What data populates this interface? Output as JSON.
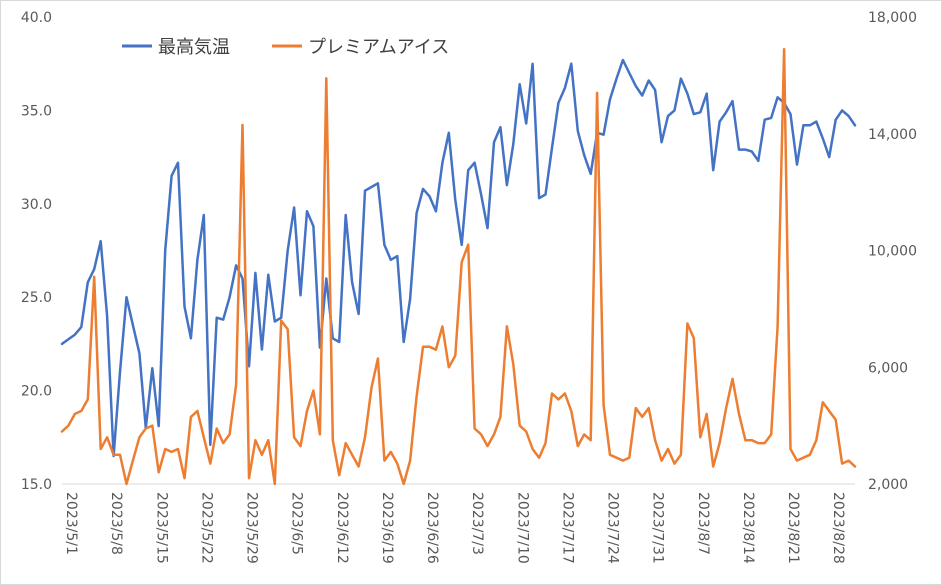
{
  "chart_data": {
    "type": "line",
    "title": "",
    "legend_position": "top-left",
    "grid": false,
    "x_tick_labels": [
      "2023/5/1",
      "2023/5/8",
      "2023/5/15",
      "2023/5/22",
      "2023/5/29",
      "2023/6/5",
      "2023/6/12",
      "2023/6/19",
      "2023/6/26",
      "2023/7/3",
      "2023/7/10",
      "2023/7/17",
      "2023/7/24",
      "2023/7/31",
      "2023/8/7",
      "2023/8/14",
      "2023/8/21",
      "2023/8/28"
    ],
    "x_day_start": 0,
    "x_day_end": 123,
    "y_left": {
      "min": 15,
      "max": 40,
      "ticks": [
        "15.0",
        "20.0",
        "25.0",
        "30.0",
        "35.0",
        "40.0"
      ]
    },
    "y_right": {
      "min": 2000,
      "max": 18000,
      "ticks": [
        "2,000",
        "6,000",
        "10,000",
        "14,000",
        "18,000"
      ]
    },
    "series": [
      {
        "name": "最高気温",
        "axis": "left",
        "color": "#4472C4",
        "points": [
          [
            0,
            22.5
          ],
          [
            2,
            23.0
          ],
          [
            3,
            23.4
          ],
          [
            4,
            25.8
          ],
          [
            5,
            26.5
          ],
          [
            6,
            28.0
          ],
          [
            7,
            24.0
          ],
          [
            8,
            16.5
          ],
          [
            9,
            21.0
          ],
          [
            10,
            25.0
          ],
          [
            11,
            23.5
          ],
          [
            12,
            22.0
          ],
          [
            13,
            18.0
          ],
          [
            14,
            21.2
          ],
          [
            15,
            18.1
          ],
          [
            16,
            27.5
          ],
          [
            17,
            31.5
          ],
          [
            18,
            32.2
          ],
          [
            19,
            24.5
          ],
          [
            20,
            22.8
          ],
          [
            21,
            27.0
          ],
          [
            22,
            29.4
          ],
          [
            23,
            17.1
          ],
          [
            24,
            23.9
          ],
          [
            25,
            23.8
          ],
          [
            26,
            25.0
          ],
          [
            27,
            26.7
          ],
          [
            28,
            26.0
          ],
          [
            29,
            21.3
          ],
          [
            30,
            26.3
          ],
          [
            31,
            22.2
          ],
          [
            32,
            26.2
          ],
          [
            33,
            23.7
          ],
          [
            34,
            23.9
          ],
          [
            35,
            27.5
          ],
          [
            36,
            29.8
          ],
          [
            37,
            25.1
          ],
          [
            38,
            29.6
          ],
          [
            39,
            28.8
          ],
          [
            40,
            22.3
          ],
          [
            41,
            26.0
          ],
          [
            42,
            22.8
          ],
          [
            43,
            22.6
          ],
          [
            44,
            29.4
          ],
          [
            45,
            25.8
          ],
          [
            46,
            24.1
          ],
          [
            47,
            30.7
          ],
          [
            48,
            30.9
          ],
          [
            49,
            31.1
          ],
          [
            50,
            27.8
          ],
          [
            51,
            27.0
          ],
          [
            52,
            27.2
          ],
          [
            53,
            22.6
          ],
          [
            54,
            24.9
          ],
          [
            55,
            29.5
          ],
          [
            56,
            30.8
          ],
          [
            57,
            30.4
          ],
          [
            58,
            29.6
          ],
          [
            59,
            32.2
          ],
          [
            60,
            33.8
          ],
          [
            61,
            30.2
          ],
          [
            62,
            27.8
          ],
          [
            63,
            31.8
          ],
          [
            64,
            32.2
          ],
          [
            65,
            30.5
          ],
          [
            66,
            28.7
          ],
          [
            67,
            33.3
          ],
          [
            68,
            34.1
          ],
          [
            69,
            31.0
          ],
          [
            70,
            33.2
          ],
          [
            71,
            36.4
          ],
          [
            72,
            34.3
          ],
          [
            73,
            37.5
          ],
          [
            74,
            30.3
          ],
          [
            75,
            30.5
          ],
          [
            76,
            33.0
          ],
          [
            77,
            35.4
          ],
          [
            78,
            36.2
          ],
          [
            79,
            37.5
          ],
          [
            80,
            33.9
          ],
          [
            81,
            32.6
          ],
          [
            82,
            31.6
          ],
          [
            83,
            33.8
          ],
          [
            84,
            33.7
          ],
          [
            85,
            35.6
          ],
          [
            86,
            36.7
          ],
          [
            87,
            37.7
          ],
          [
            88,
            37.0
          ],
          [
            89,
            36.3
          ],
          [
            90,
            35.8
          ],
          [
            91,
            36.6
          ],
          [
            92,
            36.1
          ],
          [
            93,
            33.3
          ],
          [
            94,
            34.7
          ],
          [
            95,
            35.0
          ],
          [
            96,
            36.7
          ],
          [
            97,
            35.9
          ],
          [
            98,
            34.8
          ],
          [
            99,
            34.9
          ],
          [
            100,
            35.9
          ],
          [
            101,
            31.8
          ],
          [
            102,
            34.4
          ],
          [
            103,
            34.9
          ],
          [
            104,
            35.5
          ],
          [
            105,
            32.9
          ],
          [
            106,
            32.9
          ],
          [
            107,
            32.8
          ],
          [
            108,
            32.3
          ],
          [
            109,
            34.5
          ],
          [
            110,
            34.6
          ],
          [
            111,
            35.7
          ],
          [
            112,
            35.4
          ],
          [
            113,
            34.8
          ],
          [
            114,
            32.1
          ],
          [
            115,
            34.2
          ],
          [
            116,
            34.2
          ],
          [
            117,
            34.4
          ],
          [
            118,
            33.5
          ],
          [
            119,
            32.5
          ],
          [
            120,
            34.5
          ],
          [
            121,
            35.0
          ],
          [
            122,
            34.7
          ],
          [
            123,
            34.2
          ]
        ]
      },
      {
        "name": "プレミアムアイス",
        "axis": "right",
        "color": "#ED7D31",
        "points": [
          [
            0,
            3800
          ],
          [
            1,
            4000
          ],
          [
            2,
            4400
          ],
          [
            3,
            4500
          ],
          [
            4,
            4900
          ],
          [
            5,
            9100
          ],
          [
            6,
            3200
          ],
          [
            7,
            3600
          ],
          [
            8,
            3000
          ],
          [
            9,
            3000
          ],
          [
            10,
            2000
          ],
          [
            11,
            2800
          ],
          [
            12,
            3600
          ],
          [
            13,
            3900
          ],
          [
            14,
            4000
          ],
          [
            15,
            2400
          ],
          [
            16,
            3200
          ],
          [
            17,
            3100
          ],
          [
            18,
            3200
          ],
          [
            19,
            2200
          ],
          [
            20,
            4300
          ],
          [
            21,
            4500
          ],
          [
            22,
            3600
          ],
          [
            23,
            2700
          ],
          [
            24,
            3900
          ],
          [
            25,
            3400
          ],
          [
            26,
            3700
          ],
          [
            27,
            5400
          ],
          [
            28,
            14300
          ],
          [
            29,
            2200
          ],
          [
            30,
            3500
          ],
          [
            31,
            3000
          ],
          [
            32,
            3500
          ],
          [
            33,
            2000
          ],
          [
            34,
            7600
          ],
          [
            35,
            7300
          ],
          [
            36,
            3600
          ],
          [
            37,
            3300
          ],
          [
            38,
            4500
          ],
          [
            39,
            5200
          ],
          [
            40,
            3700
          ],
          [
            41,
            15900
          ],
          [
            42,
            3500
          ],
          [
            43,
            2300
          ],
          [
            44,
            3400
          ],
          [
            45,
            3000
          ],
          [
            46,
            2600
          ],
          [
            47,
            3600
          ],
          [
            48,
            5300
          ],
          [
            49,
            6300
          ],
          [
            50,
            2800
          ],
          [
            51,
            3100
          ],
          [
            52,
            2700
          ],
          [
            53,
            2000
          ],
          [
            54,
            2800
          ],
          [
            55,
            5000
          ],
          [
            56,
            6700
          ],
          [
            57,
            6700
          ],
          [
            58,
            6600
          ],
          [
            59,
            7400
          ],
          [
            60,
            6000
          ],
          [
            61,
            6400
          ],
          [
            62,
            9600
          ],
          [
            63,
            10200
          ],
          [
            64,
            3900
          ],
          [
            65,
            3700
          ],
          [
            66,
            3300
          ],
          [
            67,
            3700
          ],
          [
            68,
            4300
          ],
          [
            69,
            7400
          ],
          [
            70,
            6100
          ],
          [
            71,
            4000
          ],
          [
            72,
            3800
          ],
          [
            73,
            3200
          ],
          [
            74,
            2900
          ],
          [
            75,
            3400
          ],
          [
            76,
            5100
          ],
          [
            77,
            4900
          ],
          [
            78,
            5100
          ],
          [
            79,
            4500
          ],
          [
            80,
            3300
          ],
          [
            81,
            3700
          ],
          [
            82,
            3500
          ],
          [
            83,
            15400
          ],
          [
            84,
            4700
          ],
          [
            85,
            3000
          ],
          [
            86,
            2900
          ],
          [
            87,
            2800
          ],
          [
            88,
            2900
          ],
          [
            89,
            4600
          ],
          [
            90,
            4300
          ],
          [
            91,
            4600
          ],
          [
            92,
            3500
          ],
          [
            93,
            2800
          ],
          [
            94,
            3200
          ],
          [
            95,
            2700
          ],
          [
            96,
            3000
          ],
          [
            97,
            7500
          ],
          [
            98,
            7000
          ],
          [
            99,
            3600
          ],
          [
            100,
            4400
          ],
          [
            101,
            2600
          ],
          [
            102,
            3400
          ],
          [
            103,
            4600
          ],
          [
            104,
            5600
          ],
          [
            105,
            4400
          ],
          [
            106,
            3500
          ],
          [
            107,
            3500
          ],
          [
            108,
            3400
          ],
          [
            109,
            3400
          ],
          [
            110,
            3700
          ],
          [
            111,
            7400
          ],
          [
            112,
            16900
          ],
          [
            113,
            3200
          ],
          [
            114,
            2800
          ],
          [
            115,
            2900
          ],
          [
            116,
            3000
          ],
          [
            117,
            3500
          ],
          [
            118,
            4800
          ],
          [
            119,
            4500
          ],
          [
            120,
            4200
          ],
          [
            121,
            2700
          ],
          [
            122,
            2800
          ],
          [
            123,
            2600
          ]
        ]
      }
    ]
  }
}
